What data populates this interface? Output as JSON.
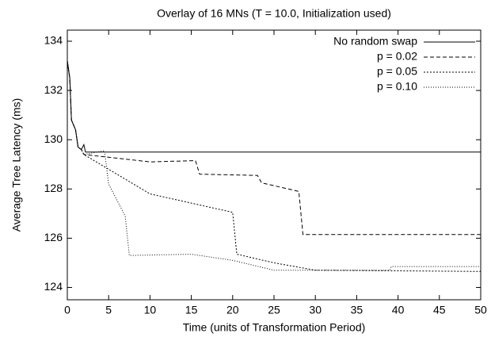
{
  "chart_data": {
    "type": "line",
    "title": "Overlay of 16 MNs (T = 10.0, Initialization used)",
    "x_label": "Time (units of Transformation Period)",
    "y_label": "Average Tree Latency (ms)",
    "xlim": [
      0,
      50
    ],
    "ylim": [
      123.5,
      134.45
    ],
    "xticks": [
      0,
      5,
      10,
      15,
      20,
      25,
      30,
      35,
      40,
      45,
      50
    ],
    "yticks": [
      124,
      126,
      128,
      130,
      132,
      134
    ],
    "grid": false,
    "legend": "top-right",
    "series": [
      {
        "name": "No random swap",
        "color": "#000000",
        "dash": "none",
        "x": [
          0,
          0.3,
          0.5,
          1,
          1.3,
          1.7,
          2,
          2.2,
          50
        ],
        "values": [
          133.2,
          132.5,
          130.8,
          130.4,
          129.7,
          129.6,
          129.8,
          129.5,
          129.5
        ]
      },
      {
        "name": "p = 0.02",
        "color": "#000000",
        "dash": "5,3",
        "x": [
          0,
          0.3,
          0.5,
          1,
          1.3,
          1.7,
          2,
          10,
          15.5,
          16,
          23,
          23.5,
          28,
          28.5,
          50
        ],
        "values": [
          133.2,
          132.5,
          130.8,
          130.4,
          129.7,
          129.6,
          129.4,
          129.1,
          129.15,
          128.6,
          128.55,
          128.25,
          127.9,
          126.15,
          126.15
        ]
      },
      {
        "name": "p = 0.05",
        "color": "#000000",
        "dash": "2,2",
        "x": [
          0,
          0.3,
          0.5,
          1,
          1.3,
          1.7,
          2,
          10,
          20,
          20.5,
          25,
          30,
          50
        ],
        "values": [
          133.2,
          132.5,
          130.8,
          130.4,
          129.7,
          129.6,
          129.4,
          127.8,
          127.05,
          125.35,
          125.0,
          124.7,
          124.65
        ]
      },
      {
        "name": "p = 0.10",
        "color": "#000000",
        "dash": "1,2",
        "x": [
          0,
          0.3,
          0.5,
          1,
          1.3,
          1.7,
          2,
          4.5,
          5,
          7,
          7.5,
          15,
          20,
          25,
          39,
          39.2,
          50
        ],
        "values": [
          133.2,
          132.5,
          130.8,
          130.4,
          129.7,
          129.6,
          129.4,
          129.55,
          128.2,
          126.9,
          125.3,
          125.35,
          125.1,
          124.7,
          124.7,
          124.85,
          124.85
        ]
      }
    ]
  }
}
